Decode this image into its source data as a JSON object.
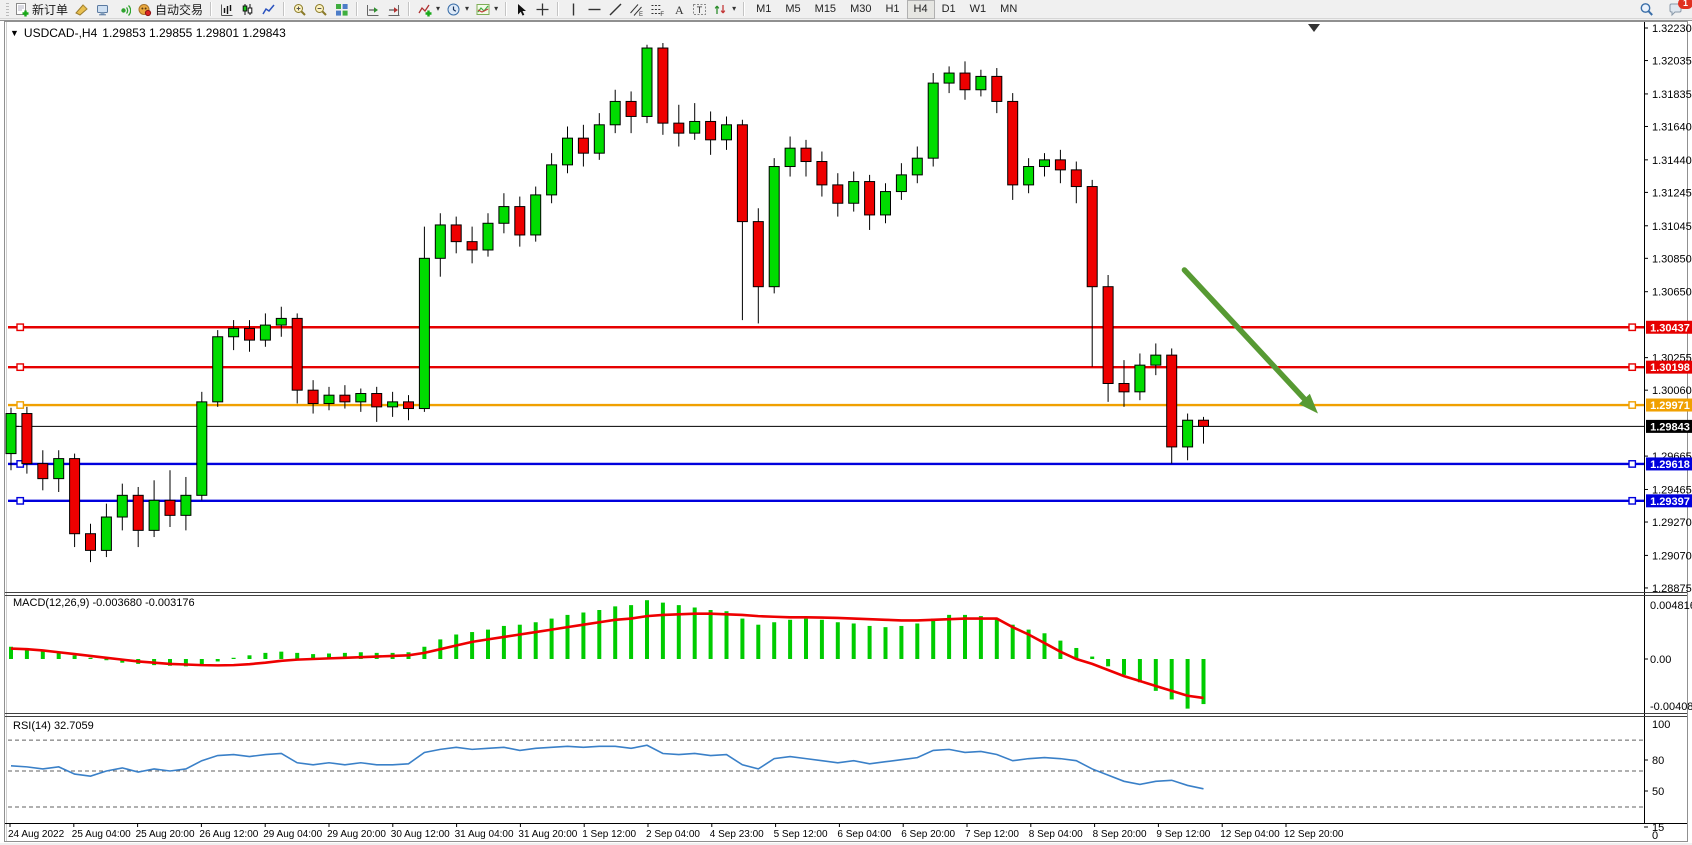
{
  "toolbar": {
    "groups": [
      {
        "items": [
          {
            "name": "new-order-button",
            "icon": "new-order",
            "label": "新订单"
          },
          {
            "name": "clear-button",
            "icon": "broom"
          },
          {
            "name": "terminal-button",
            "icon": "monitor"
          },
          {
            "name": "signal-button",
            "icon": "signal"
          },
          {
            "name": "autotrade-button",
            "icon": "robot",
            "label": "自动交易"
          }
        ]
      },
      {
        "items": [
          {
            "name": "bar-chart-button",
            "icon": "bars"
          },
          {
            "name": "candlestick-chart-button",
            "icon": "candles"
          },
          {
            "name": "line-chart-button",
            "icon": "linechart"
          }
        ]
      },
      {
        "items": [
          {
            "name": "zoom-in-button",
            "icon": "zoom-in"
          },
          {
            "name": "zoom-out-button",
            "icon": "zoom-out"
          },
          {
            "name": "tile-windows-button",
            "icon": "tile"
          }
        ]
      },
      {
        "items": [
          {
            "name": "auto-scroll-button",
            "icon": "autoscroll"
          },
          {
            "name": "chart-shift-button",
            "icon": "shift"
          }
        ]
      },
      {
        "items": [
          {
            "name": "indicators-button",
            "icon": "indicators",
            "caret": true
          },
          {
            "name": "periods-button",
            "icon": "clock",
            "caret": true
          },
          {
            "name": "templates-button",
            "icon": "template",
            "caret": true
          }
        ]
      },
      {
        "items": [
          {
            "name": "cursor-button",
            "icon": "cursor"
          },
          {
            "name": "crosshair-button",
            "icon": "crosshair"
          }
        ]
      },
      {
        "items": [
          {
            "name": "vertical-line-button",
            "icon": "vline"
          },
          {
            "name": "horizontal-line-button",
            "icon": "hline"
          },
          {
            "name": "trendline-button",
            "icon": "tline"
          },
          {
            "name": "equidistant-channel-button",
            "icon": "channel"
          },
          {
            "name": "fibonacci-button",
            "icon": "fibo"
          },
          {
            "name": "text-button",
            "icon": "textA"
          },
          {
            "name": "text-label-button",
            "icon": "labelT"
          },
          {
            "name": "arrows-button",
            "icon": "arrows",
            "caret": true
          }
        ]
      }
    ],
    "timeframes": [
      "M1",
      "M5",
      "M15",
      "M30",
      "H1",
      "H4",
      "D1",
      "W1",
      "MN"
    ],
    "active_timeframe": "H4",
    "right": [
      {
        "name": "search-button",
        "icon": "search"
      },
      {
        "name": "chat-button",
        "icon": "chat",
        "badge": "1"
      }
    ]
  },
  "chart": {
    "title_symbol": "USDCAD-,H4",
    "title_quote": "1.29853 1.29855 1.29801 1.29843"
  },
  "chart_data": {
    "type": "candlestick",
    "symbol": "USDCAD-",
    "timeframe": "H4",
    "quote": {
      "open": 1.29853,
      "high": 1.29855,
      "low": 1.29801,
      "close": 1.29843
    },
    "y_axis": {
      "max": 1.3223,
      "min": 1.28875,
      "ticks": [
        "1.32230",
        "1.32035",
        "1.31835",
        "1.31640",
        "1.31440",
        "1.31245",
        "1.31045",
        "1.30850",
        "1.30650",
        "1.30255",
        "1.30060",
        "1.29665",
        "1.29465",
        "1.29270",
        "1.29070",
        "1.28875"
      ]
    },
    "x_labels": [
      "24 Aug 2022",
      "25 Aug 04:00",
      "25 Aug 20:00",
      "26 Aug 12:00",
      "29 Aug 04:00",
      "29 Aug 20:00",
      "30 Aug 12:00",
      "31 Aug 04:00",
      "31 Aug 20:00",
      "1 Sep 12:00",
      "2 Sep 04:00",
      "4 Sep 23:00",
      "5 Sep 12:00",
      "6 Sep 04:00",
      "6 Sep 20:00",
      "7 Sep 12:00",
      "8 Sep 04:00",
      "8 Sep 20:00",
      "9 Sep 12:00",
      "12 Sep 04:00",
      "12 Sep 20:00"
    ],
    "horizontal_lines": [
      {
        "price": 1.30437,
        "color": "#e60000",
        "label": "1.30437"
      },
      {
        "price": 1.30198,
        "color": "#e60000",
        "label": "1.30198"
      },
      {
        "price": 1.29971,
        "color": "#f0a000",
        "label": "1.29971"
      },
      {
        "price": 1.29618,
        "color": "#0000dd",
        "label": "1.29618"
      },
      {
        "price": 1.29397,
        "color": "#0000dd",
        "label": "1.29397"
      }
    ],
    "current_price": {
      "value": 1.29843,
      "label": "1.29843",
      "color": "#000000"
    },
    "colors": {
      "up": "#00dc00",
      "down": "#ee0000",
      "wick": "#000000",
      "background": "#ffffff"
    },
    "candles": [
      [
        1.2968,
        1.29955,
        1.2958,
        1.2992
      ],
      [
        1.2992,
        1.2996,
        1.2956,
        1.2962
      ],
      [
        1.2962,
        1.297,
        1.2946,
        1.2953
      ],
      [
        1.2953,
        1.297,
        1.2945,
        1.2965
      ],
      [
        1.2965,
        1.2968,
        1.2912,
        1.292
      ],
      [
        1.292,
        1.2926,
        1.2903,
        1.291
      ],
      [
        1.291,
        1.2938,
        1.2906,
        1.293
      ],
      [
        1.293,
        1.295,
        1.2922,
        1.2943
      ],
      [
        1.2943,
        1.2948,
        1.2912,
        1.2922
      ],
      [
        1.2922,
        1.2952,
        1.2918,
        1.294
      ],
      [
        1.294,
        1.2958,
        1.2924,
        1.2931
      ],
      [
        1.2931,
        1.2954,
        1.2922,
        1.2943
      ],
      [
        1.2943,
        1.3005,
        1.294,
        1.2999
      ],
      [
        1.2999,
        1.3042,
        1.2996,
        1.3038
      ],
      [
        1.3038,
        1.3048,
        1.303,
        1.3043
      ],
      [
        1.3043,
        1.3048,
        1.3029,
        1.3036
      ],
      [
        1.3036,
        1.3052,
        1.3032,
        1.3045
      ],
      [
        1.3045,
        1.3056,
        1.3038,
        1.3049
      ],
      [
        1.3049,
        1.3052,
        1.2998,
        1.3006
      ],
      [
        1.3006,
        1.3012,
        1.2992,
        1.2998
      ],
      [
        1.2998,
        1.3008,
        1.2994,
        1.3003
      ],
      [
        1.3003,
        1.3009,
        1.2995,
        1.2999
      ],
      [
        1.2999,
        1.3007,
        1.2993,
        1.3004
      ],
      [
        1.3004,
        1.3008,
        1.2987,
        1.2996
      ],
      [
        1.2996,
        1.3005,
        1.299,
        1.2999
      ],
      [
        1.2999,
        1.3003,
        1.2988,
        1.2995
      ],
      [
        1.2995,
        1.3104,
        1.2993,
        1.3085
      ],
      [
        1.3085,
        1.3112,
        1.3074,
        1.3105
      ],
      [
        1.3105,
        1.311,
        1.3088,
        1.3095
      ],
      [
        1.3095,
        1.3104,
        1.3082,
        1.309
      ],
      [
        1.309,
        1.3112,
        1.3086,
        1.3106
      ],
      [
        1.3106,
        1.3124,
        1.31,
        1.3116
      ],
      [
        1.3116,
        1.3122,
        1.3092,
        1.3099
      ],
      [
        1.3099,
        1.3128,
        1.3095,
        1.3123
      ],
      [
        1.3123,
        1.3148,
        1.3118,
        1.3141
      ],
      [
        1.3141,
        1.3164,
        1.3136,
        1.3157
      ],
      [
        1.3157,
        1.3165,
        1.314,
        1.3148
      ],
      [
        1.3148,
        1.3172,
        1.3144,
        1.3165
      ],
      [
        1.3165,
        1.3186,
        1.316,
        1.3179
      ],
      [
        1.3179,
        1.3185,
        1.316,
        1.317
      ],
      [
        1.317,
        1.3213,
        1.3166,
        1.3211
      ],
      [
        1.3211,
        1.3214,
        1.3159,
        1.3166
      ],
      [
        1.3166,
        1.3177,
        1.3152,
        1.316
      ],
      [
        1.316,
        1.3178,
        1.3156,
        1.3167
      ],
      [
        1.3167,
        1.3173,
        1.3147,
        1.3156
      ],
      [
        1.3156,
        1.317,
        1.315,
        1.3165
      ],
      [
        1.3165,
        1.3168,
        1.3048,
        1.3107
      ],
      [
        1.3107,
        1.3115,
        1.3046,
        1.3068
      ],
      [
        1.3068,
        1.3145,
        1.3064,
        1.314
      ],
      [
        1.314,
        1.3158,
        1.3134,
        1.3151
      ],
      [
        1.3151,
        1.3156,
        1.3134,
        1.3143
      ],
      [
        1.3143,
        1.3149,
        1.3122,
        1.3129
      ],
      [
        1.3129,
        1.3136,
        1.311,
        1.3118
      ],
      [
        1.3118,
        1.3137,
        1.3113,
        1.3131
      ],
      [
        1.3131,
        1.3135,
        1.3102,
        1.3111
      ],
      [
        1.3111,
        1.313,
        1.3106,
        1.3125
      ],
      [
        1.3125,
        1.3142,
        1.312,
        1.3135
      ],
      [
        1.3135,
        1.3152,
        1.313,
        1.3145
      ],
      [
        1.3145,
        1.3196,
        1.314,
        1.319
      ],
      [
        1.319,
        1.32,
        1.3184,
        1.3196
      ],
      [
        1.3196,
        1.3203,
        1.318,
        1.3186
      ],
      [
        1.3186,
        1.3198,
        1.3182,
        1.3194
      ],
      [
        1.3194,
        1.3199,
        1.3172,
        1.3179
      ],
      [
        1.3179,
        1.3184,
        1.312,
        1.3129
      ],
      [
        1.3129,
        1.3145,
        1.3124,
        1.314
      ],
      [
        1.314,
        1.3148,
        1.3134,
        1.3144
      ],
      [
        1.3144,
        1.315,
        1.313,
        1.3138
      ],
      [
        1.3138,
        1.3143,
        1.3118,
        1.3128
      ],
      [
        1.3128,
        1.3132,
        1.302,
        1.3068
      ],
      [
        1.3068,
        1.3075,
        1.2999,
        1.301
      ],
      [
        1.301,
        1.3024,
        1.2996,
        1.3005
      ],
      [
        1.3005,
        1.3028,
        1.3,
        1.3021
      ],
      [
        1.3021,
        1.3034,
        1.3015,
        1.3027
      ],
      [
        1.3027,
        1.3031,
        1.2962,
        1.2972
      ],
      [
        1.2972,
        1.2992,
        1.2964,
        1.2988
      ],
      [
        1.2988,
        1.299,
        1.2974,
        1.29843
      ]
    ],
    "macd": {
      "label": "MACD(12,26,9) -0.003680 -0.003176",
      "params": "12,26,9",
      "value_main": -0.00368,
      "value_signal": -0.003176,
      "axis": [
        "0.004816",
        "0.00",
        "-0.004084"
      ],
      "axis_max": 0.004816,
      "axis_min": -0.004084,
      "colors": {
        "histogram": "#00cc00",
        "signal": "#ee0000"
      },
      "histogram": [
        0.001,
        0.0009,
        0.0007,
        0.0006,
        0.0003,
        0.0001,
        -0.0001,
        -0.0003,
        -0.0004,
        -0.0005,
        -0.00055,
        -0.0006,
        -0.0005,
        -0.0002,
        0.0001,
        0.0003,
        0.0005,
        0.0006,
        0.0005,
        0.0004,
        0.00045,
        0.0005,
        0.00055,
        0.0005,
        0.0005,
        0.00055,
        0.001,
        0.0016,
        0.002,
        0.0022,
        0.0024,
        0.0027,
        0.0028,
        0.003,
        0.0033,
        0.0036,
        0.0038,
        0.004,
        0.0043,
        0.0044,
        0.0048,
        0.0046,
        0.0044,
        0.0042,
        0.004,
        0.0039,
        0.0033,
        0.0028,
        0.003,
        0.0032,
        0.0033,
        0.0032,
        0.003,
        0.0029,
        0.0027,
        0.0026,
        0.0027,
        0.0029,
        0.0033,
        0.0036,
        0.0036,
        0.0035,
        0.0033,
        0.0028,
        0.0024,
        0.0021,
        0.0015,
        0.0009,
        0.0002,
        -0.0006,
        -0.0013,
        -0.0019,
        -0.0026,
        -0.0033,
        -0.00405,
        -0.00368
      ],
      "signal": [
        0.00085,
        0.0008,
        0.0007,
        0.00055,
        0.0004,
        0.00025,
        0.0001,
        -5e-05,
        -0.0002,
        -0.0003,
        -0.0004,
        -0.00045,
        -0.0005,
        -0.00052,
        -0.0005,
        -0.00042,
        -0.0003,
        -0.00015,
        -5e-05,
        0.0,
        5e-05,
        0.0001,
        0.00015,
        0.0002,
        0.00025,
        0.0003,
        0.0005,
        0.0008,
        0.0011,
        0.0014,
        0.0016,
        0.0018,
        0.002,
        0.0022,
        0.0024,
        0.0026,
        0.0028,
        0.003,
        0.0032,
        0.0033,
        0.0035,
        0.0036,
        0.00365,
        0.0037,
        0.0037,
        0.00365,
        0.0036,
        0.0035,
        0.00345,
        0.0034,
        0.0034,
        0.00338,
        0.00335,
        0.0033,
        0.00325,
        0.0032,
        0.00315,
        0.00315,
        0.0032,
        0.00325,
        0.0033,
        0.0033,
        0.0033,
        0.0026,
        0.002,
        0.0013,
        0.0006,
        0.0,
        -0.0004,
        -0.0009,
        -0.0014,
        -0.0018,
        -0.0022,
        -0.0026,
        -0.003,
        -0.003176
      ]
    },
    "rsi": {
      "label": "RSI(14) 32.7059",
      "params": "14",
      "value": 32.7059,
      "axis": [
        "100",
        "80",
        "50",
        "15",
        "0"
      ],
      "levels": [
        80,
        50,
        15
      ],
      "color": "#3a80c8",
      "values": [
        55,
        54,
        52,
        54,
        47,
        45,
        50,
        53,
        49,
        52,
        50,
        52,
        60,
        65,
        66,
        64,
        66,
        67,
        58,
        56,
        58,
        56,
        58,
        56,
        56,
        57,
        68,
        71,
        73,
        71,
        72,
        73,
        70,
        72,
        73,
        74,
        73,
        74,
        74,
        72,
        75,
        67,
        66,
        67,
        65,
        66,
        56,
        52,
        62,
        64,
        62,
        60,
        58,
        60,
        57,
        59,
        61,
        63,
        70,
        71,
        68,
        69,
        66,
        60,
        62,
        63,
        62,
        60,
        52,
        46,
        40,
        37,
        40,
        41,
        36,
        32.7
      ],
      "ylim": [
        0,
        100
      ]
    },
    "arrow_annotation": {
      "color": "#579a33",
      "from_bar": 73.8,
      "from_price": 1.3078,
      "to_bar": 82.2,
      "to_price": 1.2992
    }
  }
}
